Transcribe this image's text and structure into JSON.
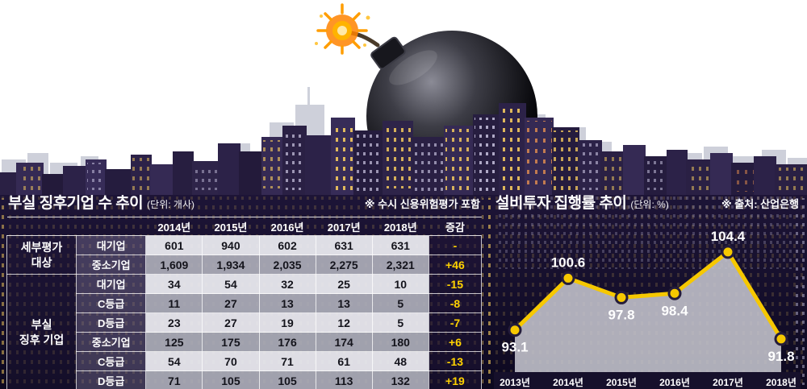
{
  "left_panel": {
    "title": "부실 징후기업 수 추이",
    "unit": "(단위: 개사)",
    "note": "※ 수시 신용위험평가 포함"
  },
  "right_panel": {
    "title": "설비투자 집행률 추이",
    "unit": "(단위: %)",
    "note": "※ 출처: 산업은행"
  },
  "chart_data": [
    {
      "type": "line",
      "title": "설비투자 집행률 추이 (단위: %)",
      "x": [
        "2013년",
        "2014년",
        "2015년",
        "2016년",
        "2017년",
        "2018년"
      ],
      "values": [
        93.1,
        100.6,
        97.8,
        98.4,
        104.4,
        91.8
      ],
      "ylim": [
        87,
        108
      ],
      "grid": false,
      "area_fill": true,
      "legend": "none",
      "line_color": "#f6c800",
      "point_color": "#f6c800",
      "point_stroke": "#241c3a",
      "area_color": "rgba(197,197,206,0.88)",
      "label_positions": [
        "below",
        "above",
        "below",
        "below",
        "above",
        "below"
      ]
    },
    {
      "type": "table",
      "title": "부실 징후기업 수 추이 (단위: 개사)",
      "col_headers": [
        "2014년",
        "2015년",
        "2016년",
        "2017년",
        "2018년",
        "증감"
      ],
      "row_groups": [
        {
          "label": "세부평가\n대상",
          "span": 2
        },
        {
          "label": "부실\n징후 기업",
          "span": 6
        }
      ],
      "rows": [
        {
          "sub": "대기업",
          "values": [
            "601",
            "940",
            "602",
            "631",
            "631"
          ],
          "delta": "-"
        },
        {
          "sub": "중소기업",
          "values": [
            "1,609",
            "1,934",
            "2,035",
            "2,275",
            "2,321"
          ],
          "delta": "+46"
        },
        {
          "sub": "대기업",
          "values": [
            "34",
            "54",
            "32",
            "25",
            "10"
          ],
          "delta": "-15"
        },
        {
          "sub": "C등급",
          "values": [
            "11",
            "27",
            "13",
            "13",
            "5"
          ],
          "delta": "-8"
        },
        {
          "sub": "D등급",
          "values": [
            "23",
            "27",
            "19",
            "12",
            "5"
          ],
          "delta": "-7"
        },
        {
          "sub": "중소기업",
          "values": [
            "125",
            "175",
            "176",
            "174",
            "180"
          ],
          "delta": "+6"
        },
        {
          "sub": "C등급",
          "values": [
            "54",
            "70",
            "71",
            "61",
            "48"
          ],
          "delta": "-13"
        },
        {
          "sub": "D등급",
          "values": [
            "71",
            "105",
            "105",
            "113",
            "132"
          ],
          "delta": "+19"
        }
      ]
    }
  ],
  "colors": {
    "accent_yellow": "#ffd200",
    "chart_line": "#f6c800",
    "night_sky": "#160f2b",
    "skyline_purple": "#2c2248",
    "back_skyline_gray": "#c9ccd7"
  }
}
